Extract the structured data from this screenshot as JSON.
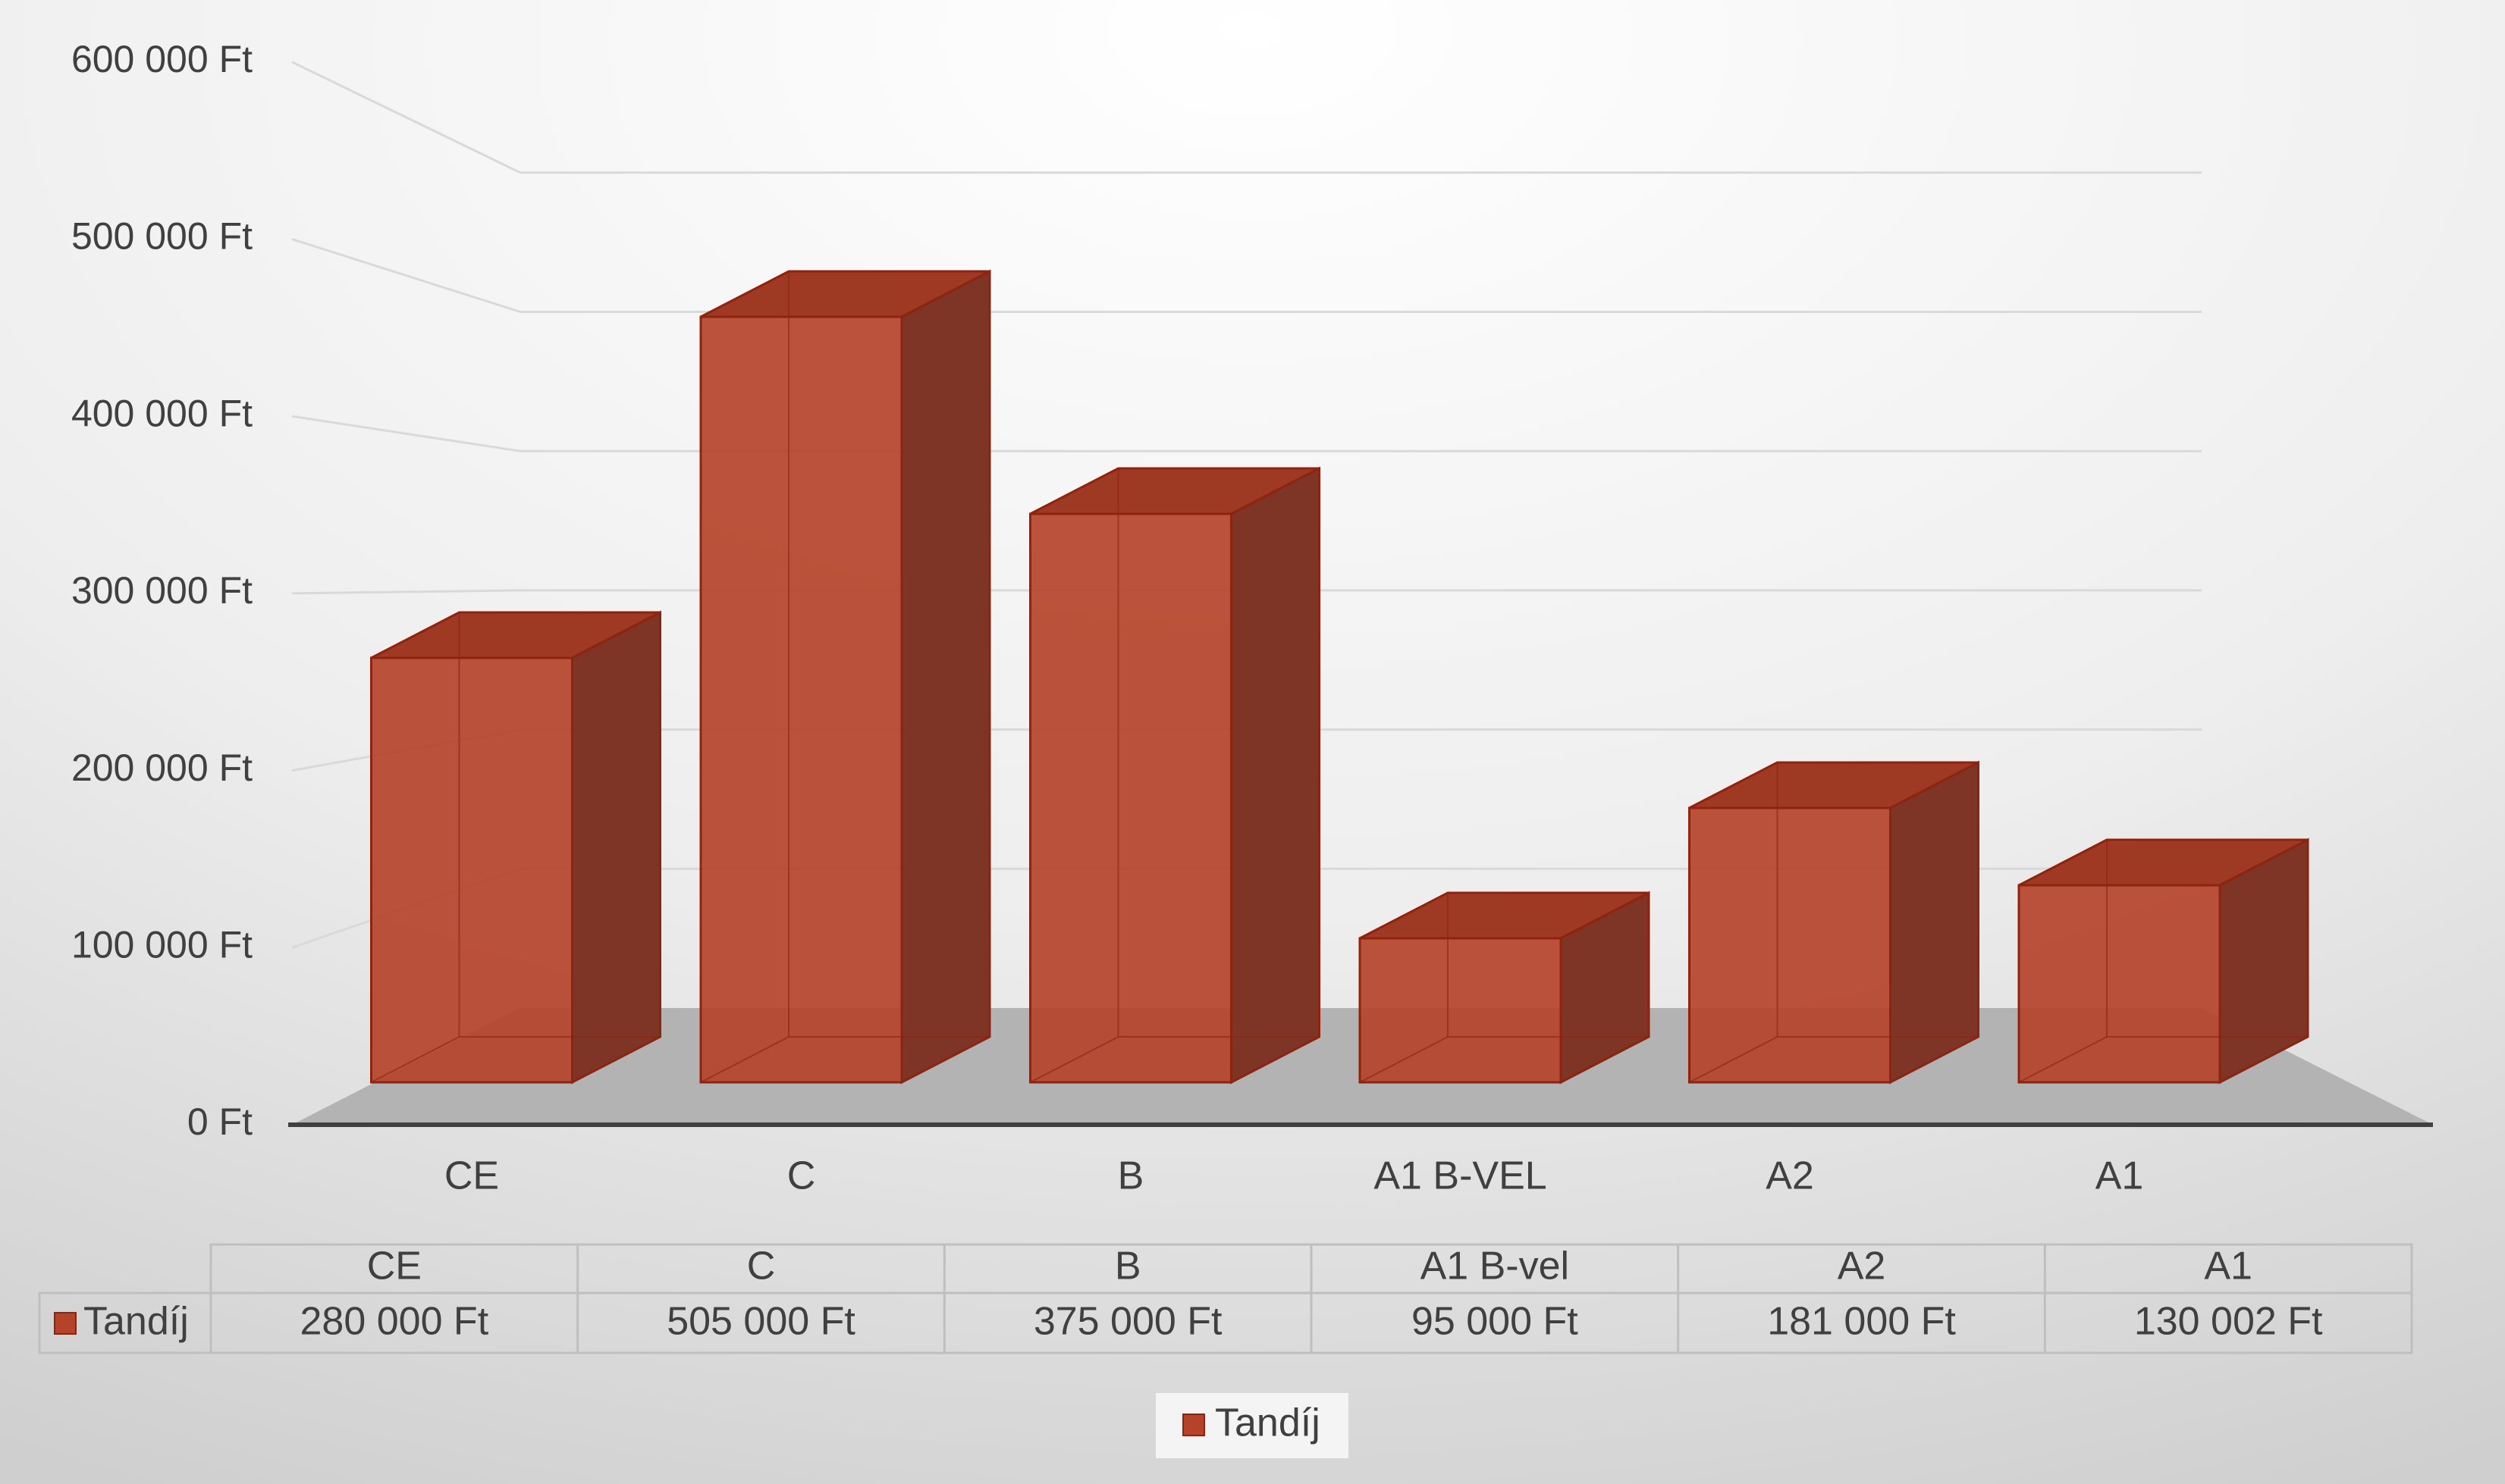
{
  "chart_data": {
    "type": "bar",
    "style": "3d-column",
    "categories": [
      "CE",
      "C",
      "B",
      "A1 B-VEL",
      "A2",
      "A1"
    ],
    "table_categories": [
      "CE",
      "C",
      "B",
      "A1 B-vel",
      "A2",
      "A1"
    ],
    "series": [
      {
        "name": "Tandíj",
        "values": [
          280000,
          505000,
          375000,
          95000,
          181000,
          130002
        ],
        "value_labels": [
          "280 000 Ft",
          "505 000 Ft",
          "375 000 Ft",
          "95 000 Ft",
          "181 000 Ft",
          "130 002 Ft"
        ],
        "color": "#B5432A"
      }
    ],
    "y_ticks": [
      0,
      100000,
      200000,
      300000,
      400000,
      500000,
      600000
    ],
    "y_tick_labels": [
      "0 Ft",
      "100 000 Ft",
      "200 000 Ft",
      "300 000 Ft",
      "400 000 Ft",
      "500 000 Ft",
      "600 000 Ft"
    ],
    "ylim": [
      0,
      600000
    ],
    "title": "",
    "xlabel": "",
    "ylabel": "",
    "grid": true,
    "legend": "bottom-center",
    "data_table": true
  },
  "colors": {
    "bar_front": "#B5432A",
    "bar_edge": "#8E2310",
    "bar_side": "#7E3526",
    "bar_top": "#9E3A24",
    "floor": "#B3B3B3",
    "axis_text": "#404040",
    "gridline": "#D9D9D9"
  }
}
